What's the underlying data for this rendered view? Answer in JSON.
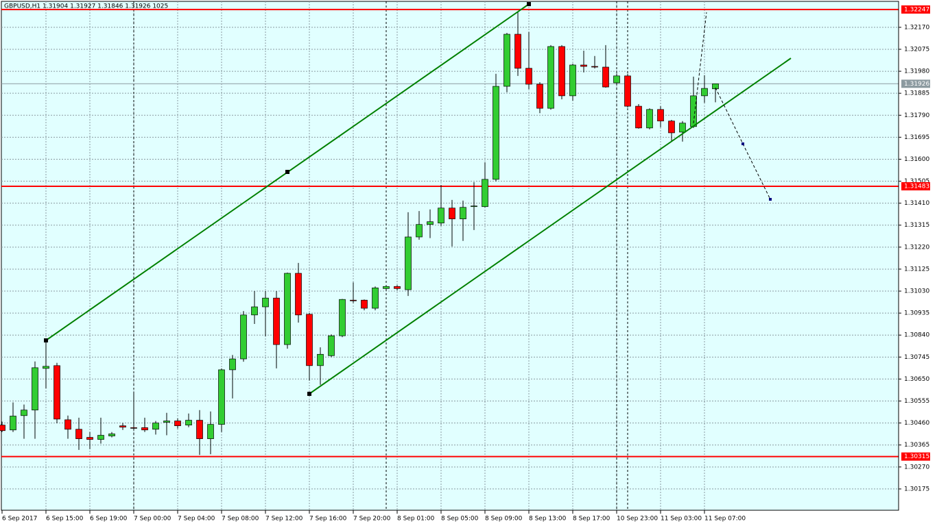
{
  "chart_data": {
    "type": "candlestick",
    "title": "GBPUSD,H1  1.31904 1.31927 1.31846 1.31926  1025",
    "categories": [
      "6 Sep 2017",
      null,
      null,
      null,
      "6 Sep 15:00",
      null,
      null,
      null,
      "6 Sep 19:00",
      null,
      null,
      null,
      "7 Sep 00:00",
      null,
      null,
      null,
      "7 Sep 04:00",
      null,
      null,
      null,
      "7 Sep 08:00",
      null,
      null,
      null,
      "7 Sep 12:00",
      null,
      null,
      null,
      "7 Sep 16:00",
      null,
      null,
      null,
      "7 Sep 20:00",
      null,
      null,
      null,
      "8 Sep 01:00",
      null,
      null,
      null,
      "8 Sep 05:00",
      null,
      null,
      null,
      "8 Sep 09:00",
      null,
      null,
      null,
      "8 Sep 13:00",
      null,
      null,
      null,
      "8 Sep 17:00",
      null,
      null,
      null,
      "10 Sep 23:00",
      null,
      null,
      null,
      "11 Sep 03:00",
      null,
      null,
      null,
      "11 Sep 07:00",
      null
    ],
    "open": [
      1.30451,
      1.3043,
      1.30492,
      1.30516,
      1.30696,
      1.30708,
      1.30474,
      1.30433,
      1.30398,
      1.30389,
      1.30404,
      1.30448,
      1.3044,
      1.3044,
      1.30433,
      1.30463,
      1.30469,
      1.30451,
      1.30472,
      1.30392,
      1.30454,
      1.3069,
      1.30737,
      1.30927,
      1.30962,
      1.31,
      1.30799,
      1.31107,
      1.3093,
      1.30708,
      1.30751,
      1.30837,
      1.30991,
      1.30991,
      1.30956,
      1.31041,
      1.3105,
      1.31036,
      1.31264,
      1.31318,
      1.31324,
      1.31389,
      1.31342,
      1.31395,
      1.31395,
      1.31513,
      1.31915,
      1.3214,
      1.31993,
      1.31924,
      1.3182,
      1.32087,
      1.31874,
      1.32007,
      1.32001,
      1.31998,
      1.3193,
      1.3196,
      1.31829,
      1.31735,
      1.31815,
      1.31765,
      1.31717,
      1.31741,
      1.31874,
      1.31904
    ],
    "high": [
      1.30466,
      1.30549,
      1.3054,
      1.30726,
      1.30817,
      1.3072,
      1.30492,
      1.30483,
      1.30421,
      1.30483,
      1.30421,
      1.3046,
      1.30591,
      1.30483,
      1.30469,
      1.30504,
      1.3048,
      1.30501,
      1.30516,
      1.3051,
      1.30696,
      1.30754,
      1.30944,
      1.3103,
      1.3103,
      1.3103,
      1.3111,
      1.31152,
      1.30935,
      1.30787,
      1.30843,
      1.30996,
      1.31068,
      1.30994,
      1.3105,
      1.31056,
      1.31056,
      1.31371,
      1.31376,
      1.31383,
      1.31489,
      1.31424,
      1.31421,
      1.31501,
      1.31587,
      1.31969,
      1.32146,
      1.32235,
      1.3215,
      1.31933,
      1.32093,
      1.32093,
      1.32013,
      1.32069,
      1.32046,
      1.32093,
      1.31969,
      1.31969,
      1.31838,
      1.3182,
      1.31829,
      1.3177,
      1.31765,
      1.31957,
      1.31963,
      1.31927
    ],
    "low": [
      1.30421,
      1.30421,
      1.30392,
      1.30392,
      1.3061,
      1.30459,
      1.30392,
      1.30344,
      1.30347,
      1.30371,
      1.30398,
      1.3043,
      1.30427,
      1.30421,
      1.3041,
      1.30407,
      1.30436,
      1.30442,
      1.30322,
      1.30325,
      1.30421,
      1.30566,
      1.30725,
      1.30888,
      1.30835,
      1.30696,
      1.30781,
      1.30894,
      1.30643,
      1.30625,
      1.30745,
      1.30831,
      1.30979,
      1.30947,
      1.30947,
      1.3103,
      1.31033,
      1.31009,
      1.31252,
      1.31259,
      1.31312,
      1.31223,
      1.31247,
      1.31294,
      1.31392,
      1.31504,
      1.31889,
      1.3196,
      1.31903,
      1.31799,
      1.31814,
      1.31859,
      1.31853,
      1.31975,
      1.31992,
      1.31909,
      1.31919,
      1.31823,
      1.31732,
      1.31729,
      1.31738,
      1.31676,
      1.31676,
      1.31735,
      1.31844,
      1.31846
    ],
    "close": [
      1.30427,
      1.3049,
      1.30516,
      1.30699,
      1.30705,
      1.30477,
      1.30433,
      1.30392,
      1.30389,
      1.30407,
      1.30413,
      1.30442,
      1.30439,
      1.3043,
      1.3046,
      1.30469,
      1.30448,
      1.30472,
      1.30392,
      1.30454,
      1.3069,
      1.30737,
      1.30927,
      1.30962,
      1.31,
      1.30799,
      1.31107,
      1.30927,
      1.30708,
      1.30757,
      1.30837,
      1.30994,
      1.30988,
      1.30956,
      1.31044,
      1.3105,
      1.31041,
      1.31264,
      1.31318,
      1.3133,
      1.31389,
      1.31342,
      1.31392,
      1.31398,
      1.31513,
      1.31915,
      1.3214,
      1.31993,
      1.31924,
      1.3182,
      1.32087,
      1.31874,
      1.32007,
      1.32001,
      1.31998,
      1.31912,
      1.3196,
      1.31829,
      1.31735,
      1.31815,
      1.31765,
      1.31714,
      1.31756,
      1.31874,
      1.31906,
      1.31926
    ],
    "up_color": "#32cd32",
    "down_color": "#ff0000",
    "ylim": [
      1.30083,
      1.32288
    ],
    "yticks": [
      {
        "value": 1.3217,
        "label": "1.32170"
      },
      1.32075,
      {
        "value": 1.3198,
        "label": "1.31980"
      },
      1.31885,
      {
        "value": 1.3179,
        "label": "1.31790"
      },
      1.31695,
      {
        "value": 1.316,
        "label": "1.31600"
      },
      1.31505,
      {
        "value": 1.3141,
        "label": "1.31410"
      },
      1.31315,
      {
        "value": 1.3122,
        "label": "1.31220"
      },
      1.31125,
      {
        "value": 1.3103,
        "label": "1.31030"
      },
      1.30935,
      {
        "value": 1.3084,
        "label": "1.30840"
      },
      1.30745,
      {
        "value": 1.3065,
        "label": "1.30650"
      },
      1.30555,
      {
        "value": 1.3046,
        "label": "1.30460"
      },
      1.30365,
      {
        "value": 1.3027,
        "label": "1.30270"
      },
      1.30175
    ],
    "levels": [
      {
        "value": 1.32247,
        "color": "#ff0000"
      },
      {
        "value": 1.31483,
        "color": "#ff0000"
      },
      {
        "value": 1.30315,
        "color": "#ff0000"
      }
    ],
    "bid": {
      "value": 1.31926,
      "color": "#8c9aa0"
    },
    "grid": true
  }
}
